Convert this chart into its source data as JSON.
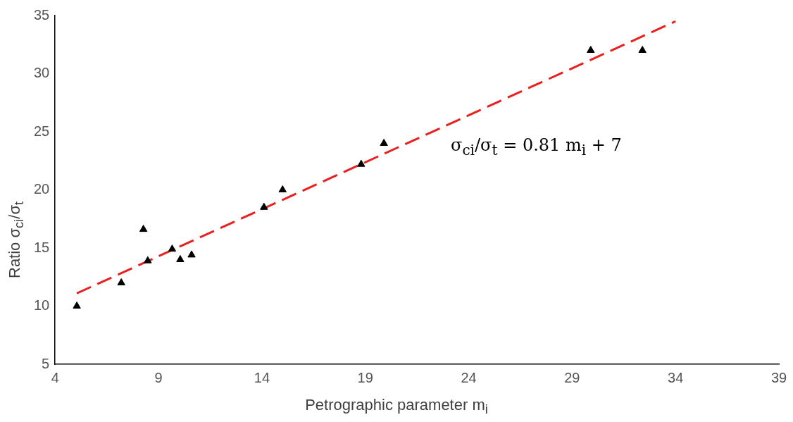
{
  "chart_data": {
    "type": "scatter",
    "xlabel": "Petrographic parameter m$_{i}$",
    "ylabel": "Ratio σ$_{ci}$/σ$_{t}$",
    "annotations": [
      "σ$_{ci}$/σ$_{t}$ = 0.81 m$_{i}$ + 7"
    ],
    "xlim": [
      4,
      39
    ],
    "xticks": [
      4,
      9,
      14,
      19,
      24,
      29,
      34,
      39
    ],
    "ylim": [
      5,
      35
    ],
    "yticks": [
      5,
      10,
      15,
      20,
      25,
      30,
      35
    ],
    "series": [
      {
        "type": "scatter",
        "marker": "triangle",
        "color": "#000000",
        "x": [
          5.05,
          7.2,
          8.27,
          8.48,
          9.66,
          10.05,
          10.6,
          14.1,
          15.0,
          18.8,
          19.9,
          29.9,
          32.4
        ],
        "values": [
          10,
          12,
          16.6,
          13.9,
          14.9,
          14,
          14.4,
          18.5,
          20,
          22.2,
          24,
          32,
          32
        ]
      },
      {
        "type": "line",
        "line_style": "dashed",
        "marker": "none",
        "color": "#e8211f",
        "x": [
          5.05,
          34
        ],
        "values": [
          11.1,
          34.5
        ]
      }
    ]
  }
}
